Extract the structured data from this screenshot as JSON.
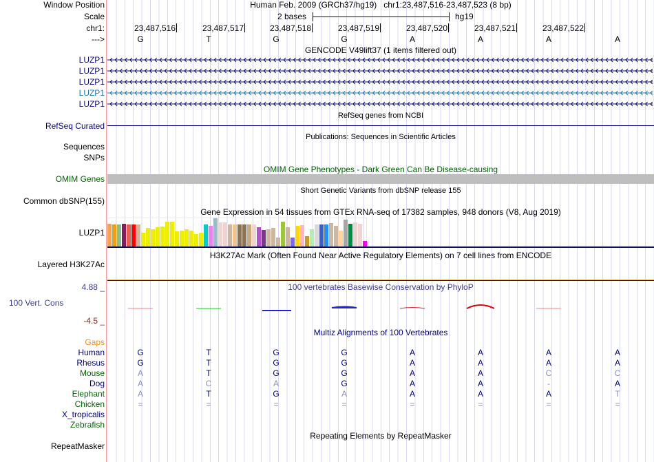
{
  "header": {
    "window_position_label": "Window Position",
    "window_position_text": "Human Feb. 2009 (GRCh37/hg19)   chr1:23,487,516-23,487,523 (8 bp)",
    "scale_label": "Scale",
    "scale_text": "2 bases",
    "scale_assembly": "hg19",
    "chrom_label": "chr1:",
    "strand_label": "--->",
    "positions": [
      "23,487,516",
      "23,487,517",
      "23,487,518",
      "23,487,519",
      "23,487,520",
      "23,487,521",
      "23,487,522"
    ],
    "bases": [
      "G",
      "T",
      "G",
      "G",
      "A",
      "A",
      "A",
      "A"
    ]
  },
  "gencode": {
    "title": "GENCODE V49lift37 (1 items filtered out)",
    "genes": [
      {
        "name": "LUZP1",
        "color": "#0c0c78"
      },
      {
        "name": "LUZP1",
        "color": "#0c0c78"
      },
      {
        "name": "LUZP1",
        "color": "#0c0c78"
      },
      {
        "name": "LUZP1",
        "color": "#1878b4"
      },
      {
        "name": "LUZP1",
        "color": "#0c0c78"
      }
    ]
  },
  "refseq": {
    "title": "RefSeq genes from NCBI",
    "label": "RefSeq Curated"
  },
  "publications": {
    "title": "Publications: Sequences in Scientific Articles",
    "labels": [
      "Sequences",
      "SNPs"
    ]
  },
  "omim": {
    "title": "OMIM Gene Phenotypes - Dark Green Can Be Disease-causing",
    "label": "OMIM Genes"
  },
  "dbsnp": {
    "title": "Short Genetic Variants from dbSNP release 155",
    "label": "Common dbSNP(155)"
  },
  "gtex": {
    "title": "Gene Expression in 54 tissues from GTEx RNA-seq of 17382 samples, 948 donors (V8, Aug 2019)",
    "label": "LUZP1",
    "chart_data": {
      "type": "bar",
      "unit": "relative expression",
      "values": [
        103,
        100,
        100,
        103,
        98,
        98,
        98,
        61,
        85,
        77,
        88,
        91,
        112,
        112,
        67,
        70,
        76,
        70,
        55,
        61,
        100,
        94,
        127,
        109,
        109,
        100,
        98,
        98,
        98,
        100,
        100,
        88,
        73,
        76,
        85,
        40,
        112,
        88,
        40,
        94,
        97,
        46,
        76,
        100,
        100,
        100,
        106,
        94,
        70,
        121,
        103,
        109,
        103,
        25
      ],
      "colors": [
        "#f9a04c",
        "#eea00e",
        "#8fbc8f",
        "#8b1a5a",
        "#e9604a",
        "#ff0000",
        "#d2b49c",
        "#eeee00",
        "#eeee00",
        "#eeee00",
        "#eeee00",
        "#eeee00",
        "#eeee00",
        "#eeee00",
        "#eeee00",
        "#eeee00",
        "#eeee00",
        "#eeee00",
        "#eeee00",
        "#eeee00",
        "#00cccc",
        "#ee82ee",
        "#99bbcc",
        "#eed5d2",
        "#eed5d2",
        "#cdb79e",
        "#eec591",
        "#8b7355",
        "#8b7355",
        "#cdaa7d",
        "#eed5d2",
        "#b452cd",
        "#7a378b",
        "#cdb79e",
        "#cdb79e",
        "#cdb79e",
        "#9ac932",
        "#cdb79e",
        "#7b68ee",
        "#ffd700",
        "#ffb6c1",
        "#cd9b1d",
        "#b4eeb4",
        "#d9d9d9",
        "#3a5fcd",
        "#1e90ff",
        "#cdb79e",
        "#cdb79e",
        "#ffd39b",
        "#a6a6a6",
        "#008b45",
        "#eed5d2",
        "#eed5d2",
        "#ff00ff"
      ]
    }
  },
  "h3k27ac": {
    "title": "H3K27Ac Mark (Often Found Near Active Regulatory Elements) on 7 cell lines from ENCODE",
    "label": "Layered H3K27Ac"
  },
  "phylop": {
    "title": "100 vertebrates Basewise Conservation by PhyloP",
    "label": "100 Vert. Cons",
    "max_label": "4.88 _",
    "min_label": "-4.5 _",
    "range": [
      -4.5,
      4.88
    ],
    "mark_colors": [
      "#f08080",
      "#00dd00",
      "#2020e0",
      "#2020e0",
      "#e02020",
      "#e00000",
      "#f08080"
    ]
  },
  "multiz": {
    "title": "Multiz Alignments of 100 Vertebrates",
    "gaps_label": "Gaps",
    "species": [
      {
        "name": "Human",
        "color": "#000080",
        "bases": [
          "G",
          "T",
          "G",
          "G",
          "A",
          "A",
          "A",
          "A"
        ],
        "faded": []
      },
      {
        "name": "Rhesus",
        "color": "#000080",
        "bases": [
          "G",
          "T",
          "G",
          "G",
          "A",
          "A",
          "A",
          "A"
        ],
        "faded": []
      },
      {
        "name": "Mouse",
        "color": "#006400",
        "bases": [
          "A",
          "T",
          "G",
          "G",
          "A",
          "A",
          "C",
          "C"
        ],
        "faded": [
          0,
          6,
          7
        ]
      },
      {
        "name": "Dog",
        "color": "#000080",
        "bases": [
          "A",
          "C",
          "A",
          "G",
          "A",
          "A",
          "-",
          "A"
        ],
        "faded": [
          0,
          1,
          2,
          6
        ]
      },
      {
        "name": "Elephant",
        "color": "#006400",
        "bases": [
          "A",
          "T",
          "G",
          "A",
          "A",
          "A",
          "A",
          "T"
        ],
        "faded": [
          0,
          3,
          7
        ]
      },
      {
        "name": "Chicken",
        "color": "#006400",
        "bases": [
          "=",
          "=",
          "=",
          "=",
          "=",
          "=",
          "=",
          "="
        ],
        "faded": [
          0,
          1,
          2,
          3,
          4,
          5,
          6,
          7
        ]
      },
      {
        "name": "X_tropicalis",
        "color": "#000080",
        "bases": [],
        "faded": []
      },
      {
        "name": "Zebrafish",
        "color": "#006400",
        "bases": [],
        "faded": []
      }
    ]
  },
  "repeatmasker": {
    "title": "Repeating Elements by RepeatMasker",
    "label": "RepeatMasker"
  }
}
